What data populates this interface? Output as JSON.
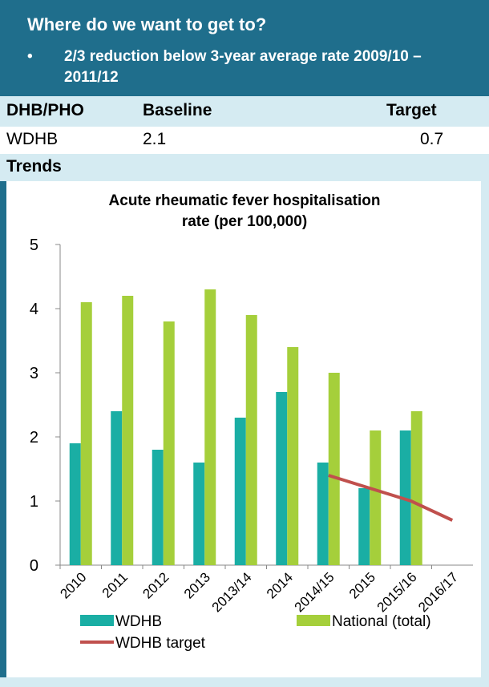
{
  "heading": "Where do we want to get to?",
  "bullet": "2/3 reduction below 3-year average rate 2009/10 – 2011/12",
  "table": {
    "header": [
      "DHB/PHO",
      "Baseline",
      "Target"
    ],
    "rows": [
      [
        "WDHB",
        2.1,
        0.7
      ]
    ]
  },
  "section": "Trends",
  "chart_data": {
    "type": "bar",
    "title": [
      "Acute rheumatic fever hospitalisation",
      "rate (per 100,000)"
    ],
    "categories": [
      "2010",
      "2011",
      "2012",
      "2013",
      "2013/14",
      "2014",
      "2014/15",
      "2015",
      "2015/16",
      "2016/17"
    ],
    "series": [
      {
        "name": "WDHB",
        "color": "#1aaea4",
        "values": [
          1.9,
          2.4,
          1.8,
          1.6,
          2.3,
          2.7,
          1.6,
          1.2,
          2.1,
          null
        ]
      },
      {
        "name": "National (total)",
        "color": "#a5cf3b",
        "values": [
          4.1,
          4.2,
          3.8,
          4.3,
          3.9,
          3.4,
          3.0,
          2.1,
          2.4,
          null
        ]
      },
      {
        "name": "WDHB target",
        "type": "line",
        "color": "#c0504d",
        "values": [
          null,
          null,
          null,
          null,
          null,
          null,
          1.4,
          1.2,
          1.0,
          0.7
        ]
      }
    ],
    "ylim": [
      0,
      5
    ],
    "yticks": [
      0,
      1,
      2,
      3,
      4,
      5
    ],
    "legend": "bottom"
  }
}
